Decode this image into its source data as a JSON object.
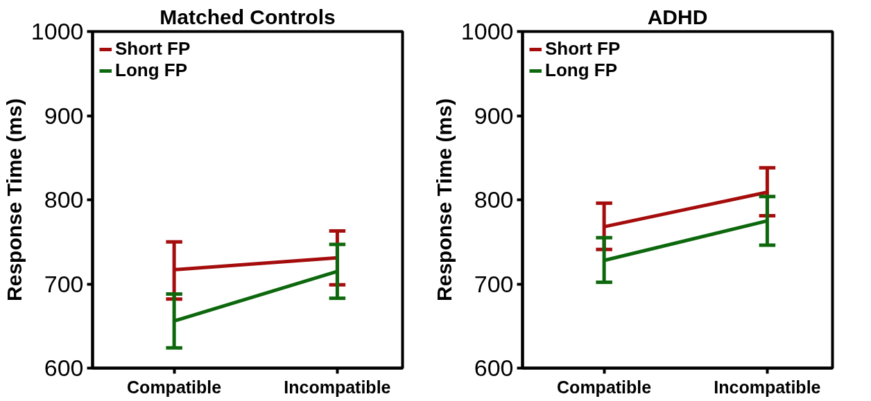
{
  "chart_data": [
    {
      "type": "line",
      "title": "Matched Controls",
      "ylabel": "Response Time (ms)",
      "categories": [
        "Compatible",
        "Incompatible"
      ],
      "ylim": [
        600,
        1000
      ],
      "yticks": [
        600,
        700,
        800,
        900,
        1000
      ],
      "grid": false,
      "legend": "top left",
      "marker": "none",
      "line_style": "solid",
      "series": [
        {
          "name": "Short FP",
          "color": "#a50d0d",
          "values": [
            717,
            731
          ],
          "errors": [
            [
              682,
              750
            ],
            [
              699,
              763
            ]
          ]
        },
        {
          "name": "Long FP",
          "color": "#0d680d",
          "values": [
            656,
            715
          ],
          "errors": [
            [
              624,
              688
            ],
            [
              683,
              747
            ]
          ]
        }
      ]
    },
    {
      "type": "line",
      "title": "ADHD",
      "ylabel": "Response Time (ms)",
      "categories": [
        "Compatible",
        "Incompatible"
      ],
      "ylim": [
        600,
        1000
      ],
      "yticks": [
        600,
        700,
        800,
        900,
        1000
      ],
      "grid": false,
      "legend": "top left",
      "marker": "none",
      "line_style": "solid",
      "series": [
        {
          "name": "Short FP",
          "color": "#a50d0d",
          "values": [
            768,
            809
          ],
          "errors": [
            [
              741,
              796
            ],
            [
              781,
              838
            ]
          ]
        },
        {
          "name": "Long FP",
          "color": "#0d680d",
          "values": [
            728,
            775
          ],
          "errors": [
            [
              702,
              755
            ],
            [
              746,
              804
            ]
          ]
        }
      ]
    }
  ]
}
